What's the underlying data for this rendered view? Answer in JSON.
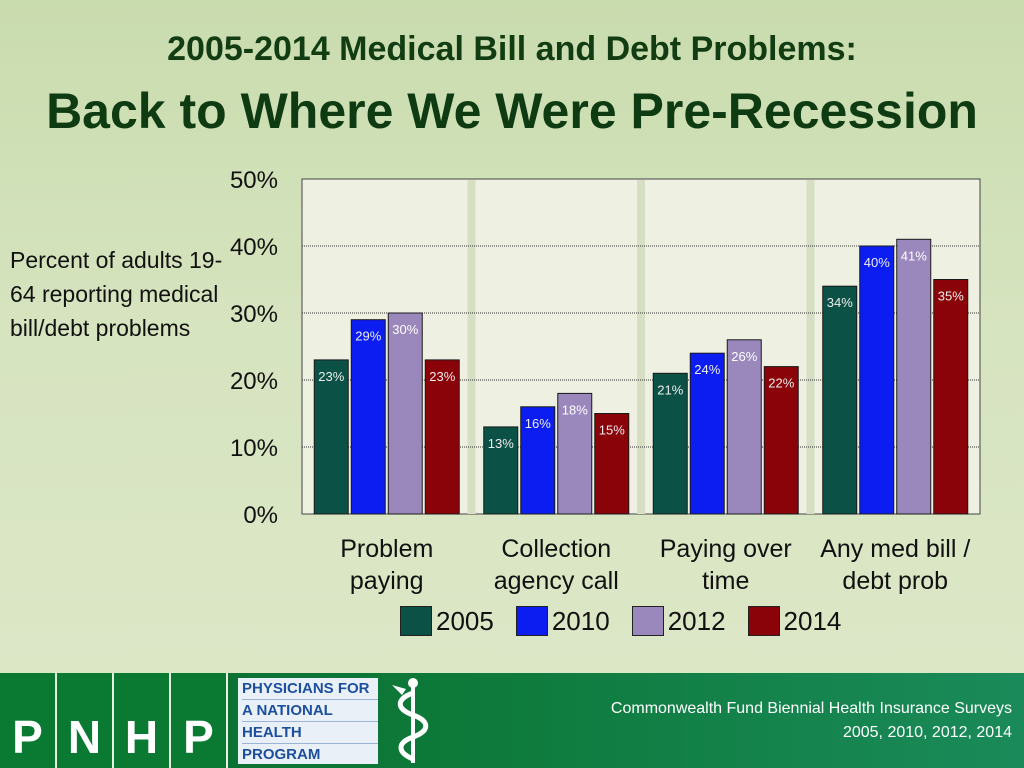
{
  "title": {
    "line1": "2005-2014 Medical Bill and Debt Problems:",
    "line2": "Back to Where We Were Pre-Recession"
  },
  "side_label": "Percent of adults 19-64 reporting medical bill/debt problems",
  "chart_data": {
    "type": "bar",
    "title": "2005-2014 Medical Bill and Debt Problems",
    "xlabel": "",
    "ylabel": "Percent of adults 19-64 reporting medical bill/debt problems",
    "ylim": [
      0,
      50
    ],
    "yticks": [
      0,
      10,
      20,
      30,
      40,
      50
    ],
    "ytick_labels": [
      "0%",
      "10%",
      "20%",
      "30%",
      "40%",
      "50%"
    ],
    "categories": [
      [
        "Problem",
        "paying"
      ],
      [
        "Collection",
        "agency call"
      ],
      [
        "Paying over",
        "time"
      ],
      [
        "Any med bill /",
        "debt prob"
      ]
    ],
    "series": [
      {
        "name": "2005",
        "color": "#0b5146",
        "values": [
          23,
          13,
          21,
          34
        ]
      },
      {
        "name": "2010",
        "color": "#0b1df0",
        "values": [
          29,
          16,
          24,
          40
        ]
      },
      {
        "name": "2012",
        "color": "#9a88bd",
        "values": [
          30,
          18,
          26,
          41
        ]
      },
      {
        "name": "2014",
        "color": "#8a0309",
        "values": [
          23,
          15,
          22,
          35
        ]
      }
    ],
    "grid": true,
    "legend_position": "bottom"
  },
  "legend": [
    {
      "label": "2005",
      "color": "#0b5146"
    },
    {
      "label": "2010",
      "color": "#0b1df0"
    },
    {
      "label": "2012",
      "color": "#9a88bd"
    },
    {
      "label": "2014",
      "color": "#8a0309"
    }
  ],
  "footer": {
    "logo_letters": [
      "P",
      "N",
      "H",
      "P"
    ],
    "logo_text": [
      "PHYSICIANS FOR",
      "A NATIONAL",
      "HEALTH",
      "PROGRAM"
    ],
    "source_line1": "Commonwealth Fund Biennial Health Insurance Surveys",
    "source_line2": "2005, 2010, 2012, 2014"
  }
}
